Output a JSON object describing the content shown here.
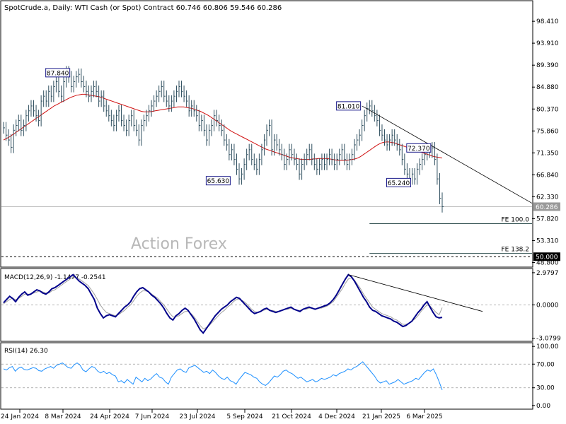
{
  "header": {
    "symbol_title": "SpotCrude.a, Daily:  WTI Cash (or Spot) Contract  60.746 60.806 59.546 60.286"
  },
  "watermark": "Action Forex",
  "colors": {
    "price": "#2f4f5f",
    "ma": "#d01010",
    "macd_main": "#00008b",
    "macd_signal": "#a0a0a0",
    "rsi": "#1e90ff",
    "trendline": "#000000",
    "axis": "#000000",
    "last_price_label": "#9a9a9a"
  },
  "chart_data": [
    {
      "type": "line",
      "name": "price-pane",
      "title": "SpotCrude.a, Daily:  WTI Cash (or Spot) Contract  60.746 60.806 59.546 60.286",
      "ylim": [
        48.0,
        102.5
      ],
      "y_ticks": [
        "98.410",
        "93.910",
        "89.390",
        "84.880",
        "80.370",
        "75.860",
        "71.350",
        "66.840",
        "62.330",
        "57.820",
        "53.310",
        "48.800"
      ],
      "series": [
        {
          "values": [
            76.5,
            75,
            74,
            72.5,
            76,
            77,
            78,
            76,
            77,
            79,
            80,
            81,
            80,
            79,
            78,
            82,
            83,
            82,
            84,
            83,
            85,
            86,
            84,
            83,
            86,
            88,
            87,
            85,
            86,
            87,
            87.5,
            86,
            85,
            84,
            83,
            84,
            85,
            84,
            82,
            83,
            81,
            80,
            79,
            78,
            77,
            79,
            80,
            78,
            77,
            76,
            78,
            79,
            77,
            76,
            74,
            77,
            78,
            79,
            80,
            81,
            82,
            83,
            84,
            85,
            83,
            82,
            81,
            82,
            83,
            84,
            85,
            84,
            83,
            82,
            80,
            81,
            80,
            79,
            77,
            78,
            76,
            74,
            76,
            77,
            79,
            78,
            77,
            76,
            74,
            73,
            71,
            72,
            70,
            68,
            66,
            67,
            69,
            71,
            72,
            70,
            69,
            68,
            70,
            72,
            74,
            76,
            77,
            72,
            74,
            73,
            72,
            71,
            69,
            70,
            72,
            71,
            70,
            69,
            67,
            69,
            70,
            71,
            72,
            70,
            69,
            68,
            69,
            70,
            69,
            70,
            71,
            70,
            69,
            70,
            71,
            72,
            70,
            69,
            70,
            71,
            73,
            74,
            75,
            77,
            79,
            80.5,
            81,
            80,
            79,
            78,
            76,
            75,
            74,
            73,
            74,
            75,
            74,
            73,
            72,
            70,
            68,
            67,
            66,
            67,
            66,
            68,
            69,
            70,
            71,
            72,
            71.5,
            72.37,
            70,
            66,
            62,
            60.286
          ]
        },
        {
          "values": [
            74,
            74.3,
            74.6,
            75,
            75.4,
            75.8,
            76.2,
            76.6,
            77,
            77.4,
            77.8,
            78.2,
            78.6,
            79,
            79.4,
            79.8,
            80.2,
            80.6,
            81,
            81.3,
            81.6,
            81.9,
            82.2,
            82.5,
            82.8,
            83,
            83.2,
            83.3,
            83.4,
            83.4,
            83.3,
            83.2,
            83.1,
            83,
            82.9,
            82.7,
            82.5,
            82.3,
            82.1,
            81.9,
            81.7,
            81.5,
            81.3,
            81.1,
            80.9,
            80.7,
            80.5,
            80.3,
            80.1,
            79.9,
            79.8,
            79.8,
            79.8,
            79.9,
            80,
            80.1,
            80.2,
            80.3,
            80.4,
            80.5,
            80.6,
            80.7,
            80.8,
            80.8,
            80.8,
            80.7,
            80.6,
            80.5,
            80.3,
            80.1,
            79.9,
            79.6,
            79.3,
            79,
            78.6,
            78.2,
            77.8,
            77.4,
            77,
            76.6,
            76.2,
            75.8,
            75.5,
            75.2,
            74.9,
            74.6,
            74.3,
            74,
            73.7,
            73.4,
            73.1,
            72.8,
            72.5,
            72.2,
            72,
            71.8,
            71.6,
            71.4,
            71.2,
            71,
            70.8,
            70.6,
            70.4,
            70.3,
            70.2,
            70.1,
            70,
            70,
            70,
            70,
            70.1,
            70.1,
            70.2,
            70.2,
            70.2,
            70.2,
            70.1,
            70,
            69.9,
            69.8,
            69.8,
            69.8,
            69.8,
            69.9,
            70,
            70.1,
            70.3,
            70.6,
            71,
            71.4,
            71.8,
            72.2,
            72.6,
            73,
            73.3,
            73.5,
            73.6,
            73.6,
            73.5,
            73.4,
            73.2,
            73,
            72.8,
            72.6,
            72.4,
            72.2,
            72,
            71.8,
            71.6,
            71.4,
            71.2,
            71,
            70.8,
            70.6,
            70.5,
            70.4,
            70.3
          ]
        }
      ],
      "annotations": [
        {
          "label": "87.840",
          "x_index": 27,
          "y": 87.84
        },
        {
          "label": "65.630",
          "x_index": 91,
          "y": 65.63
        },
        {
          "label": "81.010",
          "x_index": 143,
          "y": 81.01
        },
        {
          "label": "65.240",
          "x_index": 163,
          "y": 65.24
        },
        {
          "label": "72.370",
          "x_index": 171,
          "y": 72.37
        }
      ],
      "horizontal_levels": [
        {
          "label": "FE 100.0",
          "y": 56.79
        },
        {
          "label": "FE 138.2",
          "y": 50.67
        }
      ],
      "dashed_level": {
        "label": "50.000",
        "y": 50.0
      },
      "last_price": {
        "label": "60.286",
        "y": 60.286
      },
      "trendline": {
        "from": {
          "x_index": 143,
          "y": 81.0
        },
        "to": {
          "x_index": 210,
          "y": 61.0
        }
      }
    },
    {
      "type": "line",
      "name": "macd-pane",
      "title": "MACD(12,26,9) -1.1477 -0.2541",
      "ylim": [
        -3.3,
        3.3
      ],
      "y_ticks": [
        "2.9797",
        "0.0000",
        "-3.0799"
      ],
      "series": [
        {
          "values": [
            0.2,
            0.5,
            0.8,
            0.6,
            0.3,
            0.7,
            1.0,
            1.2,
            0.9,
            1.0,
            1.2,
            1.4,
            1.3,
            1.1,
            1.0,
            1.2,
            1.5,
            1.6,
            1.8,
            2.0,
            2.2,
            2.4,
            2.6,
            2.8,
            2.5,
            2.2,
            2.0,
            1.8,
            1.5,
            1.0,
            0.5,
            -0.3,
            -0.8,
            -1.2,
            -1.0,
            -0.9,
            -1.0,
            -1.1,
            -0.8,
            -0.5,
            -0.2,
            0.0,
            0.3,
            0.8,
            1.2,
            1.5,
            1.6,
            1.4,
            1.2,
            0.9,
            0.7,
            0.4,
            0.1,
            -0.3,
            -0.8,
            -1.2,
            -1.4,
            -1.0,
            -0.8,
            -0.5,
            -0.3,
            -0.5,
            -0.9,
            -1.3,
            -1.8,
            -2.3,
            -2.6,
            -2.2,
            -1.8,
            -1.4,
            -1.0,
            -0.7,
            -0.4,
            -0.2,
            0.0,
            0.3,
            0.5,
            0.7,
            0.6,
            0.3,
            0.0,
            -0.3,
            -0.6,
            -0.8,
            -0.7,
            -0.6,
            -0.4,
            -0.3,
            -0.5,
            -0.6,
            -0.7,
            -0.6,
            -0.5,
            -0.4,
            -0.3,
            -0.2,
            -0.4,
            -0.5,
            -0.6,
            -0.4,
            -0.3,
            -0.2,
            -0.3,
            -0.4,
            -0.3,
            -0.2,
            -0.1,
            0.0,
            0.2,
            0.5,
            0.9,
            1.4,
            1.9,
            2.4,
            2.8,
            2.6,
            2.2,
            1.7,
            1.2,
            0.7,
            0.3,
            -0.2,
            -0.5,
            -0.6,
            -0.8,
            -1.0,
            -1.1,
            -1.2,
            -1.3,
            -1.5,
            -1.6,
            -1.8,
            -2.0,
            -1.9,
            -1.7,
            -1.5,
            -1.1,
            -0.7,
            -0.4,
            0.0,
            0.3,
            -0.2,
            -0.7,
            -1.1,
            -1.2,
            -1.15
          ]
        },
        {
          "values": [
            0.1,
            0.3,
            0.5,
            0.6,
            0.5,
            0.6,
            0.8,
            1.0,
            1.0,
            1.0,
            1.1,
            1.2,
            1.3,
            1.2,
            1.1,
            1.1,
            1.3,
            1.4,
            1.6,
            1.8,
            2.0,
            2.2,
            2.4,
            2.6,
            2.5,
            2.4,
            2.2,
            2.0,
            1.8,
            1.4,
            1.0,
            0.5,
            0.0,
            -0.4,
            -0.7,
            -0.8,
            -0.9,
            -1.0,
            -0.9,
            -0.7,
            -0.5,
            -0.2,
            0.0,
            0.4,
            0.8,
            1.1,
            1.3,
            1.3,
            1.2,
            1.0,
            0.8,
            0.6,
            0.3,
            0.0,
            -0.4,
            -0.8,
            -1.1,
            -1.1,
            -1.0,
            -0.8,
            -0.6,
            -0.6,
            -0.8,
            -1.1,
            -1.5,
            -1.9,
            -2.2,
            -2.1,
            -1.9,
            -1.6,
            -1.3,
            -1.0,
            -0.7,
            -0.5,
            -0.2,
            0.0,
            0.3,
            0.5,
            0.5,
            0.4,
            0.2,
            -0.1,
            -0.4,
            -0.6,
            -0.7,
            -0.6,
            -0.5,
            -0.4,
            -0.5,
            -0.5,
            -0.6,
            -0.6,
            -0.5,
            -0.4,
            -0.4,
            -0.3,
            -0.4,
            -0.5,
            -0.5,
            -0.4,
            -0.4,
            -0.3,
            -0.3,
            -0.4,
            -0.3,
            -0.3,
            -0.2,
            -0.1,
            0.1,
            0.3,
            0.7,
            1.1,
            1.5,
            2.0,
            2.4,
            2.5,
            2.3,
            1.9,
            1.5,
            1.0,
            0.6,
            0.2,
            -0.2,
            -0.4,
            -0.6,
            -0.8,
            -0.9,
            -1.0,
            -1.1,
            -1.3,
            -1.4,
            -1.6,
            -1.8,
            -1.8,
            -1.7,
            -1.5,
            -1.3,
            -1.0,
            -0.6,
            -0.3,
            0.0,
            -0.1,
            -0.4,
            -0.7,
            -0.9,
            -0.25
          ]
        }
      ],
      "trendline": {
        "from_index": 114,
        "from_y": 2.8,
        "to_index": 178,
        "to_y": -0.3
      }
    },
    {
      "type": "line",
      "name": "rsi-pane",
      "title": "RSI(14) 26.30",
      "ylim": [
        -5,
        105
      ],
      "y_ticks": [
        "100.00",
        "70.00",
        "30.00",
        "0.00"
      ],
      "levels": [
        70,
        30
      ],
      "series": [
        {
          "values": [
            62,
            60,
            64,
            66,
            58,
            63,
            65,
            61,
            60,
            62,
            64,
            63,
            59,
            58,
            62,
            64,
            66,
            63,
            68,
            70,
            72,
            68,
            64,
            63,
            69,
            72,
            68,
            60,
            57,
            62,
            66,
            64,
            58,
            55,
            58,
            54,
            56,
            52,
            50,
            40,
            42,
            38,
            44,
            40,
            36,
            48,
            44,
            40,
            46,
            42,
            45,
            50,
            54,
            48,
            46,
            40,
            36,
            48,
            54,
            60,
            62,
            58,
            56,
            64,
            66,
            68,
            64,
            60,
            56,
            58,
            54,
            60,
            56,
            50,
            46,
            44,
            48,
            42,
            40,
            36,
            44,
            50,
            56,
            54,
            52,
            48,
            46,
            40,
            36,
            34,
            38,
            44,
            50,
            48,
            52,
            58,
            60,
            56,
            54,
            50,
            46,
            48,
            44,
            40,
            42,
            44,
            40,
            42,
            46,
            44,
            46,
            48,
            52,
            50,
            54,
            56,
            58,
            62,
            60,
            64,
            66,
            70,
            74,
            68,
            62,
            56,
            50,
            42,
            38,
            40,
            42,
            36,
            38,
            40,
            44,
            40,
            36,
            38,
            40,
            42,
            46,
            44,
            50,
            56,
            60,
            58,
            62,
            52,
            40,
            26.3
          ]
        }
      ]
    }
  ],
  "x_axis": {
    "labels": [
      "24 Jan 2024",
      "8 Mar 2024",
      "24 Apr 2024",
      "7 Jun 2024",
      "23 Jul 2024",
      "5 Sep 2024",
      "21 Oct 2024",
      "4 Dec 2024",
      "21 Jan 2025",
      "6 Mar 2025"
    ]
  }
}
